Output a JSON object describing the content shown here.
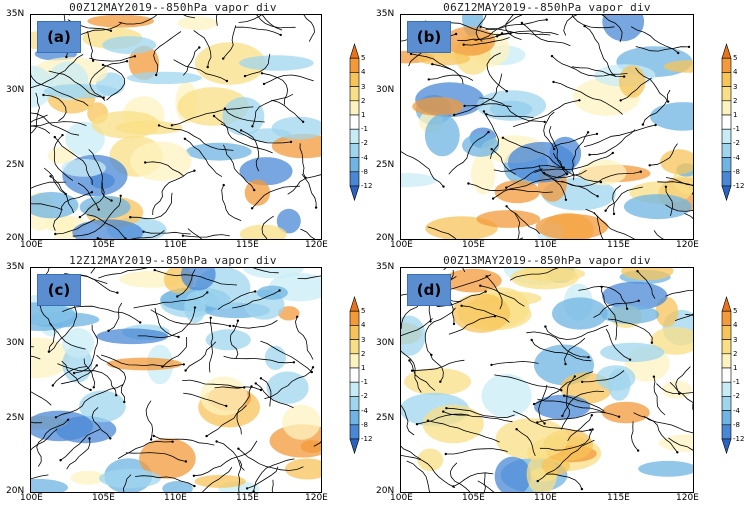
{
  "panels": [
    {
      "id": "a",
      "label": "(a)",
      "title": "00Z12MAY2019--850hPa vapor div"
    },
    {
      "id": "b",
      "label": "(b)",
      "title": "06Z12MAY2019--850hPa vapor div"
    },
    {
      "id": "c",
      "label": "(c)",
      "title": "12Z12MAY2019--850hPa vapor div"
    },
    {
      "id": "d",
      "label": "(d)",
      "title": "00Z13MAY2019--850hPa vapor div"
    }
  ],
  "axes": {
    "x_ticks": [
      "100E",
      "105E",
      "110E",
      "115E",
      "120E"
    ],
    "y_ticks": [
      "35N",
      "30N",
      "25N",
      "20N"
    ]
  },
  "colorbar": {
    "labels": [
      "5",
      "4",
      "3",
      "2",
      "1",
      "-1",
      "-2",
      "-4",
      "-8",
      "-12"
    ],
    "colors": [
      "#e8731a",
      "#f39a3a",
      "#f7c45a",
      "#f9df86",
      "#fdf3c0",
      "#ffffff",
      "#c8ecf5",
      "#9fd6ee",
      "#6fb4e3",
      "#4a88d6",
      "#2a62c2"
    ]
  },
  "colors": {
    "label_box": "#5b8ed1",
    "streamline": "#000000"
  }
}
